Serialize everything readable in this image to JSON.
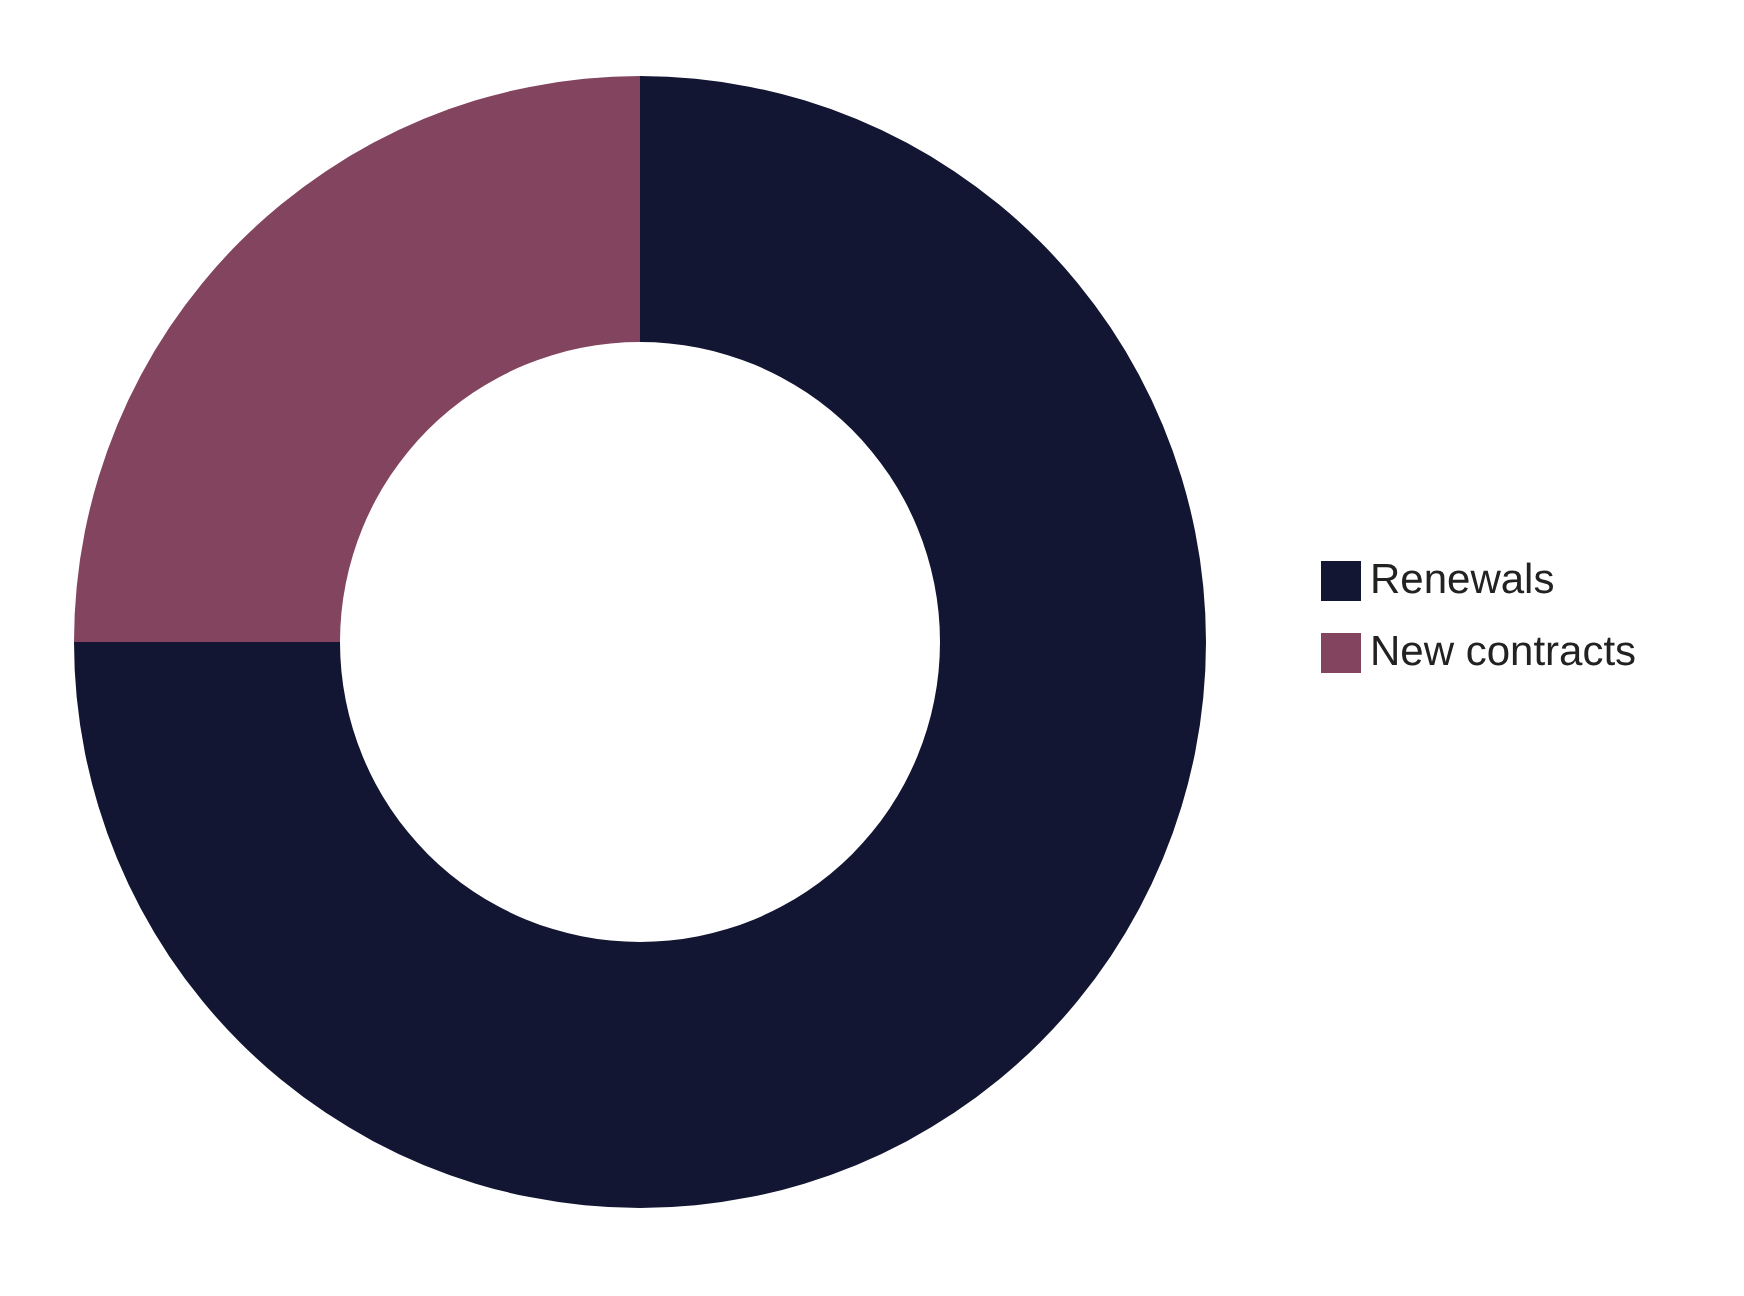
{
  "chart_data": {
    "type": "donut",
    "categories": [
      "Renewals",
      "New contracts"
    ],
    "values": [
      75,
      25
    ],
    "colors": [
      "#131632",
      "#834460"
    ],
    "legend": "right"
  }
}
